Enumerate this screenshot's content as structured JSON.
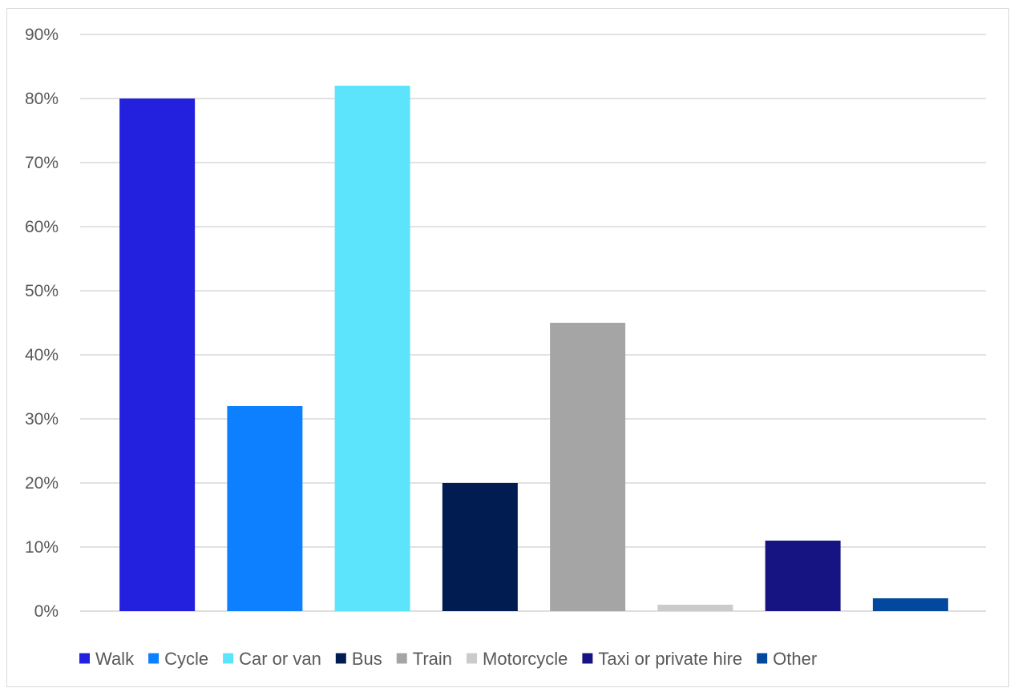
{
  "chart_data": {
    "type": "bar",
    "title": "",
    "xlabel": "",
    "ylabel": "",
    "categories": [
      "Walk",
      "Cycle",
      "Car or van",
      "Bus",
      "Train",
      "Motorcycle",
      "Taxi or private hire",
      "Other"
    ],
    "values": [
      80,
      32,
      82,
      20,
      45,
      1,
      11,
      2
    ],
    "colors": [
      "#2320DE",
      "#0D80FF",
      "#5CE4FD",
      "#001C51",
      "#A5A5A5",
      "#CBCBCB",
      "#161382",
      "#02499E"
    ],
    "ylim": [
      0,
      90
    ],
    "yticks": [
      "0%",
      "10%",
      "20%",
      "30%",
      "40%",
      "50%",
      "60%",
      "70%",
      "80%",
      "90%"
    ],
    "y_unit": "percent",
    "grid": "horizontal",
    "legend_position": "bottom",
    "legend": [
      "Walk",
      "Cycle",
      "Car or van",
      "Bus",
      "Train",
      "Motorcycle",
      "Taxi or private hire",
      "Other"
    ]
  }
}
